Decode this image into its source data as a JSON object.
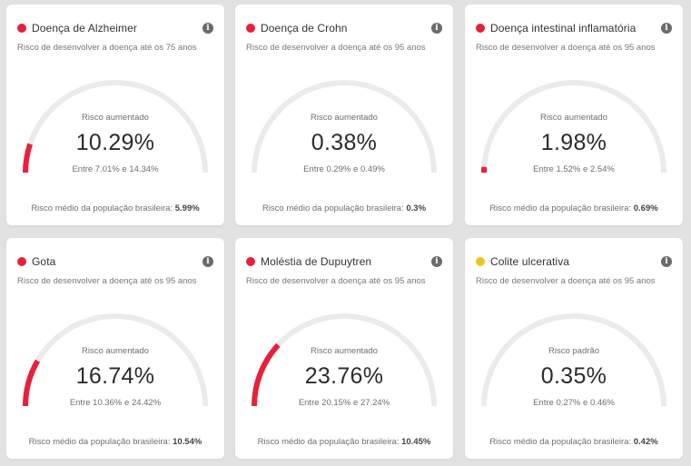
{
  "colors": {
    "high_risk": "#e8203a",
    "standard_risk": "#f0c419",
    "track": "#ebebeb",
    "background": "#e2e2e2"
  },
  "cards": [
    {
      "title": "Doença de Alzheimer",
      "status": "high",
      "dot_color": "#e8203a",
      "subtitle": "Risco de desenvolver a doença até os 75 anos",
      "risk_label": "Risco aumentado",
      "risk_value": "10.29%",
      "risk_percent": 10.29,
      "range": "Entre 7.01% e 14.34%",
      "population_label": "Risco médio da população brasileira:",
      "population_value": "5.99%",
      "info_icon": "info-icon"
    },
    {
      "title": "Doença de Crohn",
      "status": "high",
      "dot_color": "#e8203a",
      "subtitle": "Risco de desenvolver a doença até os 95 anos",
      "risk_label": "Risco aumentado",
      "risk_value": "0.38%",
      "risk_percent": 0.38,
      "range": "Entre 0.29% e 0.49%",
      "population_label": "Risco médio da população brasileira:",
      "population_value": "0.3%",
      "info_icon": "info-icon"
    },
    {
      "title": "Doença intestinal inflamatória",
      "status": "high",
      "dot_color": "#e8203a",
      "subtitle": "Risco de desenvolver a doença até os 95 anos",
      "risk_label": "Risco aumentado",
      "risk_value": "1.98%",
      "risk_percent": 1.98,
      "range": "Entre 1.52% e 2.54%",
      "population_label": "Risco médio da população brasileira:",
      "population_value": "0.69%",
      "info_icon": "info-icon"
    },
    {
      "title": "Gota",
      "status": "high",
      "dot_color": "#e8203a",
      "subtitle": "Risco de desenvolver a doença até os 95 anos",
      "risk_label": "Risco aumentado",
      "risk_value": "16.74%",
      "risk_percent": 16.74,
      "range": "Entre 10.36% e 24.42%",
      "population_label": "Risco médio da população brasileira:",
      "population_value": "10.54%",
      "info_icon": "info-icon"
    },
    {
      "title": "Moléstia de Dupuytren",
      "status": "high",
      "dot_color": "#e8203a",
      "subtitle": "Risco de desenvolver a doença até os 95 anos",
      "risk_label": "Risco aumentado",
      "risk_value": "23.76%",
      "risk_percent": 23.76,
      "range": "Entre 20.15% e 27.24%",
      "population_label": "Risco médio da população brasileira:",
      "population_value": "10.45%",
      "info_icon": "info-icon"
    },
    {
      "title": "Colite ulcerativa",
      "status": "standard",
      "dot_color": "#f0c419",
      "subtitle": "Risco de desenvolver a doença até os 95 anos",
      "risk_label": "Risco padrão",
      "risk_value": "0.35%",
      "risk_percent": 0.35,
      "range": "Entre 0.27% e 0.46%",
      "population_label": "Risco médio da população brasileira:",
      "population_value": "0.42%",
      "info_icon": "info-icon"
    }
  ]
}
